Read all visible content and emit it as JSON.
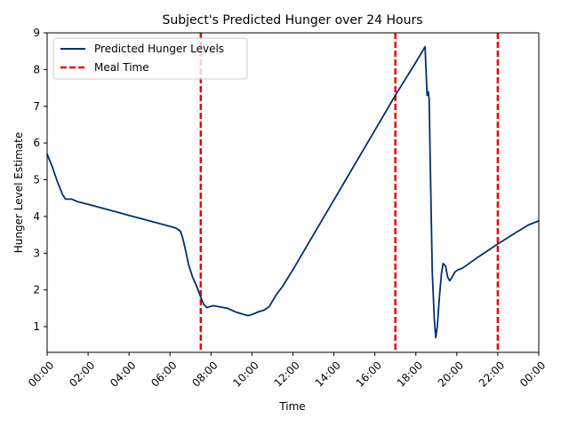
{
  "chart_data": {
    "type": "line",
    "title": "Subject's Predicted Hunger over 24 Hours",
    "xlabel": "Time",
    "ylabel": "Hunger Level Estimate",
    "xlim": [
      0,
      24
    ],
    "ylim": [
      0.3,
      9
    ],
    "x_ticks": [
      {
        "value": 0,
        "label": "00:00"
      },
      {
        "value": 2,
        "label": "02:00"
      },
      {
        "value": 4,
        "label": "04:00"
      },
      {
        "value": 6,
        "label": "06:00"
      },
      {
        "value": 8,
        "label": "08:00"
      },
      {
        "value": 10,
        "label": "10:00"
      },
      {
        "value": 12,
        "label": "12:00"
      },
      {
        "value": 14,
        "label": "14:00"
      },
      {
        "value": 16,
        "label": "16:00"
      },
      {
        "value": 18,
        "label": "18:00"
      },
      {
        "value": 20,
        "label": "20:00"
      },
      {
        "value": 22,
        "label": "22:00"
      },
      {
        "value": 24,
        "label": "00:00"
      }
    ],
    "y_ticks": [
      1,
      2,
      3,
      4,
      5,
      6,
      7,
      8,
      9
    ],
    "legend": {
      "placement": "upper-left",
      "entries": [
        {
          "label": "Predicted Hunger Levels",
          "style": "solid",
          "color": "#003070"
        },
        {
          "label": "Meal Time",
          "style": "dashed",
          "color": "#ee0000"
        }
      ]
    },
    "series": [
      {
        "name": "Predicted Hunger Levels",
        "color": "#003070",
        "points": [
          [
            0.0,
            5.7
          ],
          [
            0.25,
            5.35
          ],
          [
            0.5,
            4.95
          ],
          [
            0.75,
            4.6
          ],
          [
            0.9,
            4.47
          ],
          [
            1.2,
            4.47
          ],
          [
            1.5,
            4.4
          ],
          [
            2.0,
            4.33
          ],
          [
            3.0,
            4.18
          ],
          [
            4.0,
            4.03
          ],
          [
            5.0,
            3.88
          ],
          [
            6.0,
            3.73
          ],
          [
            6.3,
            3.68
          ],
          [
            6.5,
            3.6
          ],
          [
            6.6,
            3.45
          ],
          [
            6.75,
            3.1
          ],
          [
            6.9,
            2.7
          ],
          [
            7.1,
            2.35
          ],
          [
            7.3,
            2.1
          ],
          [
            7.5,
            1.8
          ],
          [
            7.65,
            1.6
          ],
          [
            7.8,
            1.52
          ],
          [
            8.1,
            1.57
          ],
          [
            8.5,
            1.53
          ],
          [
            8.8,
            1.5
          ],
          [
            9.2,
            1.4
          ],
          [
            9.5,
            1.35
          ],
          [
            9.8,
            1.3
          ],
          [
            10.0,
            1.33
          ],
          [
            10.3,
            1.4
          ],
          [
            10.6,
            1.45
          ],
          [
            10.85,
            1.55
          ],
          [
            11.0,
            1.7
          ],
          [
            11.2,
            1.88
          ],
          [
            11.5,
            2.1
          ],
          [
            12.0,
            2.55
          ],
          [
            13.0,
            3.5
          ],
          [
            14.0,
            4.45
          ],
          [
            15.0,
            5.4
          ],
          [
            16.0,
            6.35
          ],
          [
            17.0,
            7.3
          ],
          [
            18.0,
            8.2
          ],
          [
            18.45,
            8.62
          ],
          [
            18.55,
            7.3
          ],
          [
            18.6,
            7.4
          ],
          [
            18.65,
            7.2
          ],
          [
            18.7,
            5.5
          ],
          [
            18.8,
            2.5
          ],
          [
            18.9,
            1.2
          ],
          [
            18.97,
            0.7
          ],
          [
            19.05,
            1.0
          ],
          [
            19.15,
            1.8
          ],
          [
            19.25,
            2.45
          ],
          [
            19.33,
            2.72
          ],
          [
            19.45,
            2.65
          ],
          [
            19.55,
            2.35
          ],
          [
            19.65,
            2.25
          ],
          [
            19.75,
            2.33
          ],
          [
            19.9,
            2.48
          ],
          [
            20.0,
            2.53
          ],
          [
            20.3,
            2.6
          ],
          [
            21.0,
            2.88
          ],
          [
            22.0,
            3.25
          ],
          [
            23.0,
            3.6
          ],
          [
            23.5,
            3.77
          ],
          [
            24.0,
            3.88
          ]
        ]
      }
    ],
    "meal_times": [
      7.5,
      17.0,
      22.0
    ]
  }
}
